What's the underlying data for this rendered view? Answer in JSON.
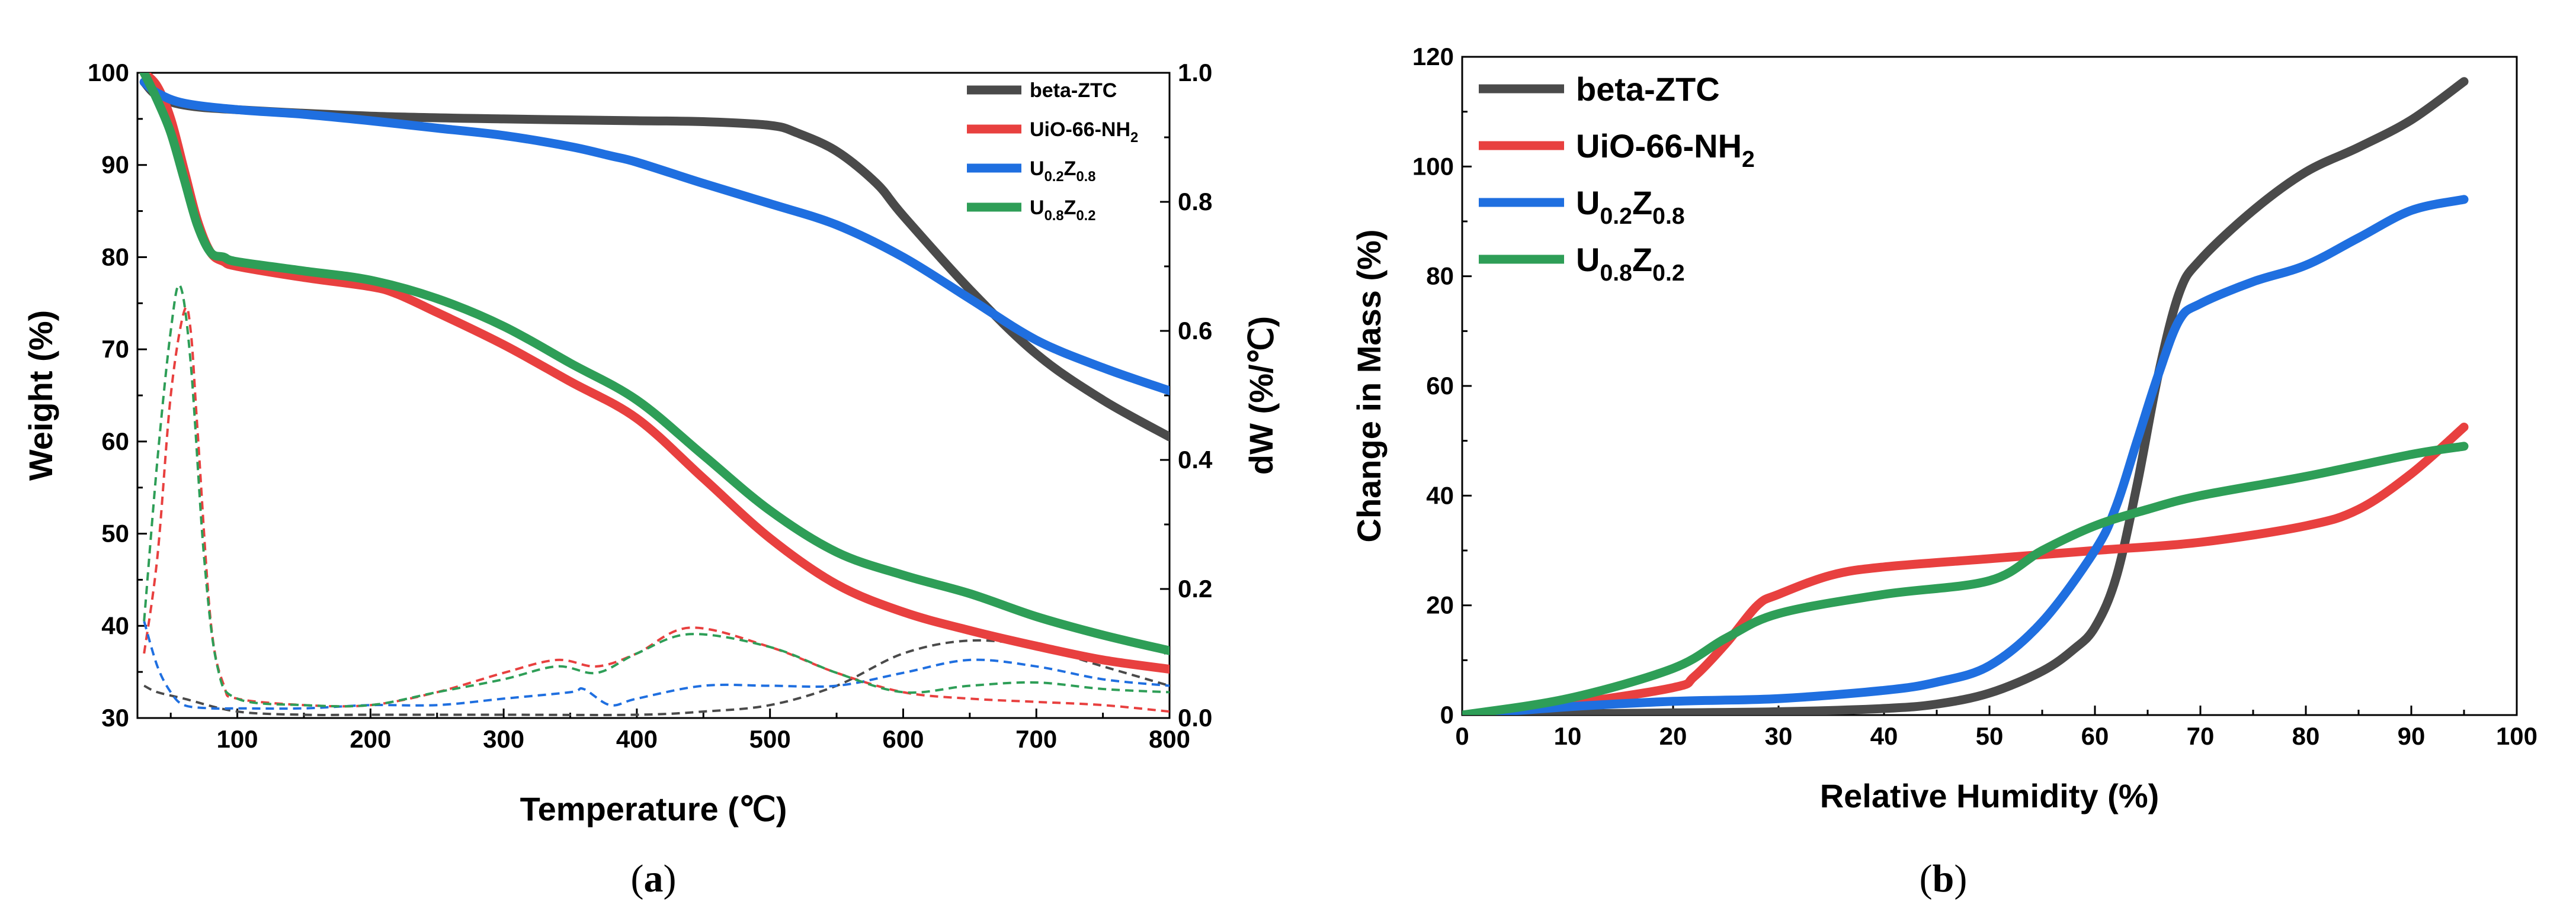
{
  "figure": {
    "panel_a_label": "a",
    "panel_b_label": "b"
  },
  "chart_data": [
    {
      "type": "line",
      "panel": "a",
      "xlabel": "Temperature (℃)",
      "ylabel": "Weight (%)",
      "y2label": "dW (%/℃)",
      "xlim": [
        25,
        800
      ],
      "ylim": [
        30,
        100
      ],
      "y2lim": [
        0,
        1.0
      ],
      "xticks": [
        100,
        200,
        300,
        400,
        500,
        600,
        700,
        800
      ],
      "yticks": [
        30,
        40,
        50,
        60,
        70,
        80,
        90,
        100
      ],
      "y2ticks": [
        0.0,
        0.2,
        0.4,
        0.6,
        0.8,
        1.0
      ],
      "y2ticklabels": [
        "0.0",
        "0.2",
        "0.4",
        "0.6",
        "0.8",
        "1.0"
      ],
      "legend_position": "top-right",
      "series": [
        {
          "name": "beta-ZTC",
          "legend_main": "beta-ZTC",
          "legend_sub1": "",
          "legend_mid": "",
          "legend_sub2": "",
          "color": "#4a4a4a",
          "x": [
            30,
            40,
            60,
            100,
            200,
            300,
            400,
            450,
            500,
            520,
            550,
            580,
            600,
            650,
            700,
            750,
            800
          ],
          "y": [
            99,
            97.5,
            96.5,
            96,
            95.3,
            95,
            94.8,
            94.7,
            94.3,
            93.5,
            91.5,
            88,
            84.5,
            76.5,
            69.5,
            64.5,
            60.5
          ]
        },
        {
          "name": "UiO-66-NH2",
          "legend_main": "UiO-66-NH",
          "legend_sub1": "2",
          "legend_mid": "",
          "legend_sub2": "",
          "color": "#e8403f",
          "x": [
            30,
            40,
            50,
            60,
            70,
            80,
            90,
            100,
            150,
            200,
            220,
            250,
            300,
            350,
            400,
            450,
            500,
            550,
            600,
            650,
            700,
            750,
            800
          ],
          "y": [
            100,
            98.5,
            95,
            89.5,
            84,
            80.5,
            79.5,
            79,
            77.8,
            76.8,
            76,
            74,
            70.5,
            66.5,
            62.5,
            56,
            49.5,
            44.5,
            41.5,
            39.5,
            37.8,
            36.3,
            35.3
          ]
        },
        {
          "name": "U0.2Z0.8",
          "legend_main": "U",
          "legend_sub1": "0.2",
          "legend_mid": "Z",
          "legend_sub2": "0.8",
          "color": "#1f6fe0",
          "x": [
            30,
            40,
            60,
            100,
            150,
            200,
            250,
            300,
            350,
            380,
            400,
            450,
            500,
            550,
            600,
            650,
            700,
            750,
            800
          ],
          "y": [
            99,
            97.8,
            96.7,
            96,
            95.5,
            94.8,
            94,
            93.2,
            92,
            91,
            90.3,
            88,
            85.8,
            83.5,
            80,
            75.5,
            71,
            68,
            65.5
          ]
        },
        {
          "name": "U0.8Z0.2",
          "legend_main": "U",
          "legend_sub1": "0.8",
          "legend_mid": "Z",
          "legend_sub2": "0.2",
          "color": "#2e9e57",
          "x": [
            30,
            40,
            50,
            60,
            70,
            80,
            90,
            100,
            150,
            200,
            250,
            300,
            350,
            400,
            450,
            500,
            550,
            600,
            650,
            700,
            750,
            800
          ],
          "y": [
            100,
            97,
            93.5,
            88.5,
            83.5,
            80.5,
            80,
            79.5,
            78.5,
            77.5,
            75.5,
            72.5,
            68.5,
            64.5,
            58.5,
            52.5,
            48,
            45.5,
            43.5,
            41,
            39,
            37.3
          ]
        }
      ],
      "derivative_series": [
        {
          "name": "beta-ZTC dW",
          "color": "#4a4a4a",
          "x": [
            30,
            40,
            60,
            100,
            150,
            200,
            300,
            400,
            450,
            500,
            550,
            600,
            650,
            700,
            750,
            800
          ],
          "y": [
            0.05,
            0.04,
            0.03,
            0.01,
            0.005,
            0.005,
            0.005,
            0.005,
            0.01,
            0.02,
            0.05,
            0.1,
            0.12,
            0.11,
            0.08,
            0.05
          ]
        },
        {
          "name": "UiO-66-NH2 dW",
          "color": "#e8403f",
          "x": [
            30,
            40,
            50,
            60,
            65,
            70,
            80,
            90,
            100,
            150,
            200,
            250,
            300,
            340,
            370,
            400,
            440,
            500,
            550,
            600,
            650,
            700,
            750,
            800
          ],
          "y": [
            0.1,
            0.25,
            0.5,
            0.63,
            0.6,
            0.45,
            0.15,
            0.05,
            0.03,
            0.02,
            0.02,
            0.04,
            0.07,
            0.09,
            0.08,
            0.1,
            0.14,
            0.11,
            0.07,
            0.04,
            0.03,
            0.025,
            0.02,
            0.01
          ]
        },
        {
          "name": "U0.2Z0.8 dW",
          "color": "#1f6fe0",
          "x": [
            30,
            40,
            50,
            60,
            80,
            100,
            150,
            200,
            250,
            300,
            350,
            360,
            380,
            400,
            450,
            500,
            550,
            600,
            650,
            700,
            750,
            800
          ],
          "y": [
            0.15,
            0.08,
            0.04,
            0.02,
            0.015,
            0.015,
            0.015,
            0.02,
            0.02,
            0.03,
            0.04,
            0.045,
            0.02,
            0.03,
            0.05,
            0.05,
            0.05,
            0.07,
            0.09,
            0.08,
            0.06,
            0.05
          ]
        },
        {
          "name": "U0.8Z0.2 dW",
          "color": "#2e9e57",
          "x": [
            30,
            40,
            50,
            57,
            65,
            75,
            85,
            100,
            150,
            200,
            250,
            300,
            340,
            370,
            400,
            440,
            500,
            550,
            600,
            650,
            700,
            750,
            800
          ],
          "y": [
            0.15,
            0.4,
            0.6,
            0.67,
            0.55,
            0.25,
            0.08,
            0.03,
            0.02,
            0.02,
            0.04,
            0.06,
            0.08,
            0.07,
            0.1,
            0.13,
            0.11,
            0.07,
            0.04,
            0.05,
            0.055,
            0.045,
            0.04
          ]
        }
      ]
    },
    {
      "type": "line",
      "panel": "b",
      "xlabel": "Relative Humidity (%)",
      "ylabel": "Change in Mass (%)",
      "xlim": [
        0,
        100
      ],
      "ylim": [
        0,
        120
      ],
      "xticks": [
        0,
        10,
        20,
        30,
        40,
        50,
        60,
        70,
        80,
        90,
        100
      ],
      "yticks": [
        0,
        20,
        40,
        60,
        80,
        100,
        120
      ],
      "legend_position": "top-left",
      "series": [
        {
          "name": "beta-ZTC",
          "legend_main": "beta-ZTC",
          "legend_sub1": "",
          "legend_mid": "",
          "legend_sub2": "",
          "color": "#4a4a4a",
          "x": [
            0,
            10,
            20,
            30,
            40,
            45,
            50,
            55,
            58,
            60,
            62,
            64,
            66,
            68,
            70,
            75,
            80,
            85,
            90,
            95
          ],
          "y": [
            0,
            0.2,
            0.4,
            0.6,
            1.2,
            2,
            4,
            8,
            12,
            16,
            25,
            42,
            62,
            77,
            83,
            92,
            99,
            103.5,
            108.5,
            115.5
          ]
        },
        {
          "name": "UiO-66-NH2",
          "legend_main": "UiO-66-NH",
          "legend_sub1": "2",
          "legend_mid": "",
          "legend_sub2": "",
          "color": "#e8403f",
          "x": [
            0,
            10,
            20,
            22,
            25,
            28,
            30,
            35,
            40,
            50,
            60,
            70,
            80,
            85,
            90,
            95
          ],
          "y": [
            0,
            2,
            5,
            7,
            13,
            20,
            22,
            25.5,
            27,
            28.5,
            30,
            31.5,
            34.5,
            37.5,
            44,
            52.5
          ]
        },
        {
          "name": "U0.2Z0.8",
          "legend_main": "U",
          "legend_sub1": "0.2",
          "legend_mid": "Z",
          "legend_sub2": "0.8",
          "color": "#1f6fe0",
          "x": [
            0,
            10,
            20,
            30,
            40,
            45,
            50,
            55,
            60,
            62,
            64,
            66,
            68,
            70,
            75,
            80,
            85,
            90,
            95
          ],
          "y": [
            0,
            1.5,
            2.5,
            3,
            4.5,
            6,
            9,
            17,
            30,
            38,
            50,
            62,
            72,
            75,
            79,
            82,
            87,
            92,
            94
          ]
        },
        {
          "name": "U0.8Z0.2",
          "legend_main": "U",
          "legend_sub1": "0.8",
          "legend_mid": "Z",
          "legend_sub2": "0.2",
          "color": "#2e9e57",
          "x": [
            0,
            10,
            20,
            25,
            30,
            40,
            50,
            55,
            60,
            65,
            70,
            80,
            90,
            95
          ],
          "y": [
            0,
            3,
            8.5,
            14,
            18.5,
            22,
            24.5,
            30,
            34.5,
            37.5,
            40,
            43.5,
            47.5,
            49
          ]
        }
      ]
    }
  ]
}
